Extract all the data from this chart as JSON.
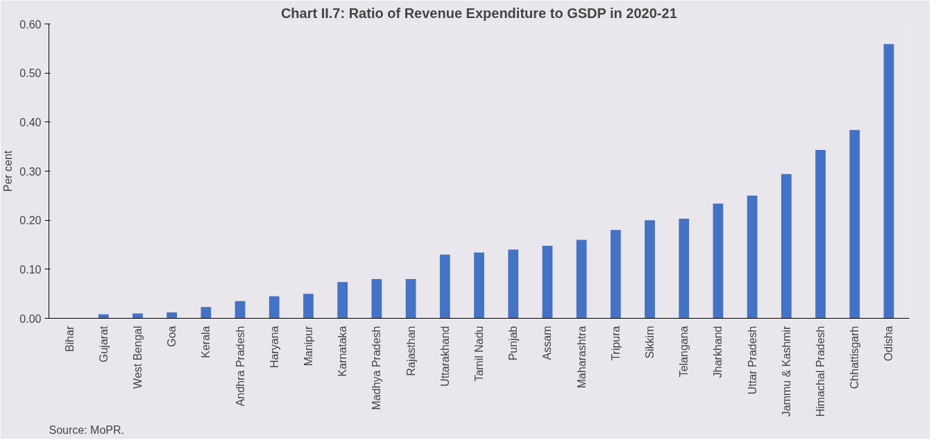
{
  "chart_data": {
    "type": "bar",
    "title": "Chart II.7: Ratio of Revenue Expenditure to GSDP in 2020-21",
    "ylabel": "Per cent",
    "categories": [
      "Bihar",
      "Gujarat",
      "West Bengal",
      "Goa",
      "Kerala",
      "Andhra Pradesh",
      "Haryana",
      "Manipur",
      "Karnataka",
      "Madhya Pradesh",
      "Rajasthan",
      "Uttarakhand",
      "Tamil Nadu",
      "Punjab",
      "Assam",
      "Maharashtra",
      "Tripura",
      "Sikkim",
      "Telangana",
      "Jharkhand",
      "Uttar Pradesh",
      "Jammu & Kashmir",
      "Himachal Pradesh",
      "Chhattisgarh",
      "Odisha"
    ],
    "values": [
      0.0,
      0.008,
      0.01,
      0.012,
      0.023,
      0.035,
      0.045,
      0.05,
      0.074,
      0.08,
      0.08,
      0.13,
      0.134,
      0.14,
      0.148,
      0.16,
      0.18,
      0.2,
      0.203,
      0.234,
      0.25,
      0.294,
      0.343,
      0.384,
      0.559
    ],
    "color": "#4472c4",
    "ylim": [
      0,
      0.6
    ],
    "yticks": [
      {
        "value": 0,
        "label": "0.00"
      },
      {
        "value": 0.1,
        "label": "0.10"
      },
      {
        "value": 0.2,
        "label": "0.20"
      },
      {
        "value": 0.3,
        "label": "0.30"
      },
      {
        "value": 0.4,
        "label": "0.40"
      },
      {
        "value": 0.5,
        "label": "0.50"
      },
      {
        "value": 0.6,
        "label": "0.60"
      }
    ],
    "grid": false,
    "annotations": [
      "Source: MoPR."
    ]
  }
}
